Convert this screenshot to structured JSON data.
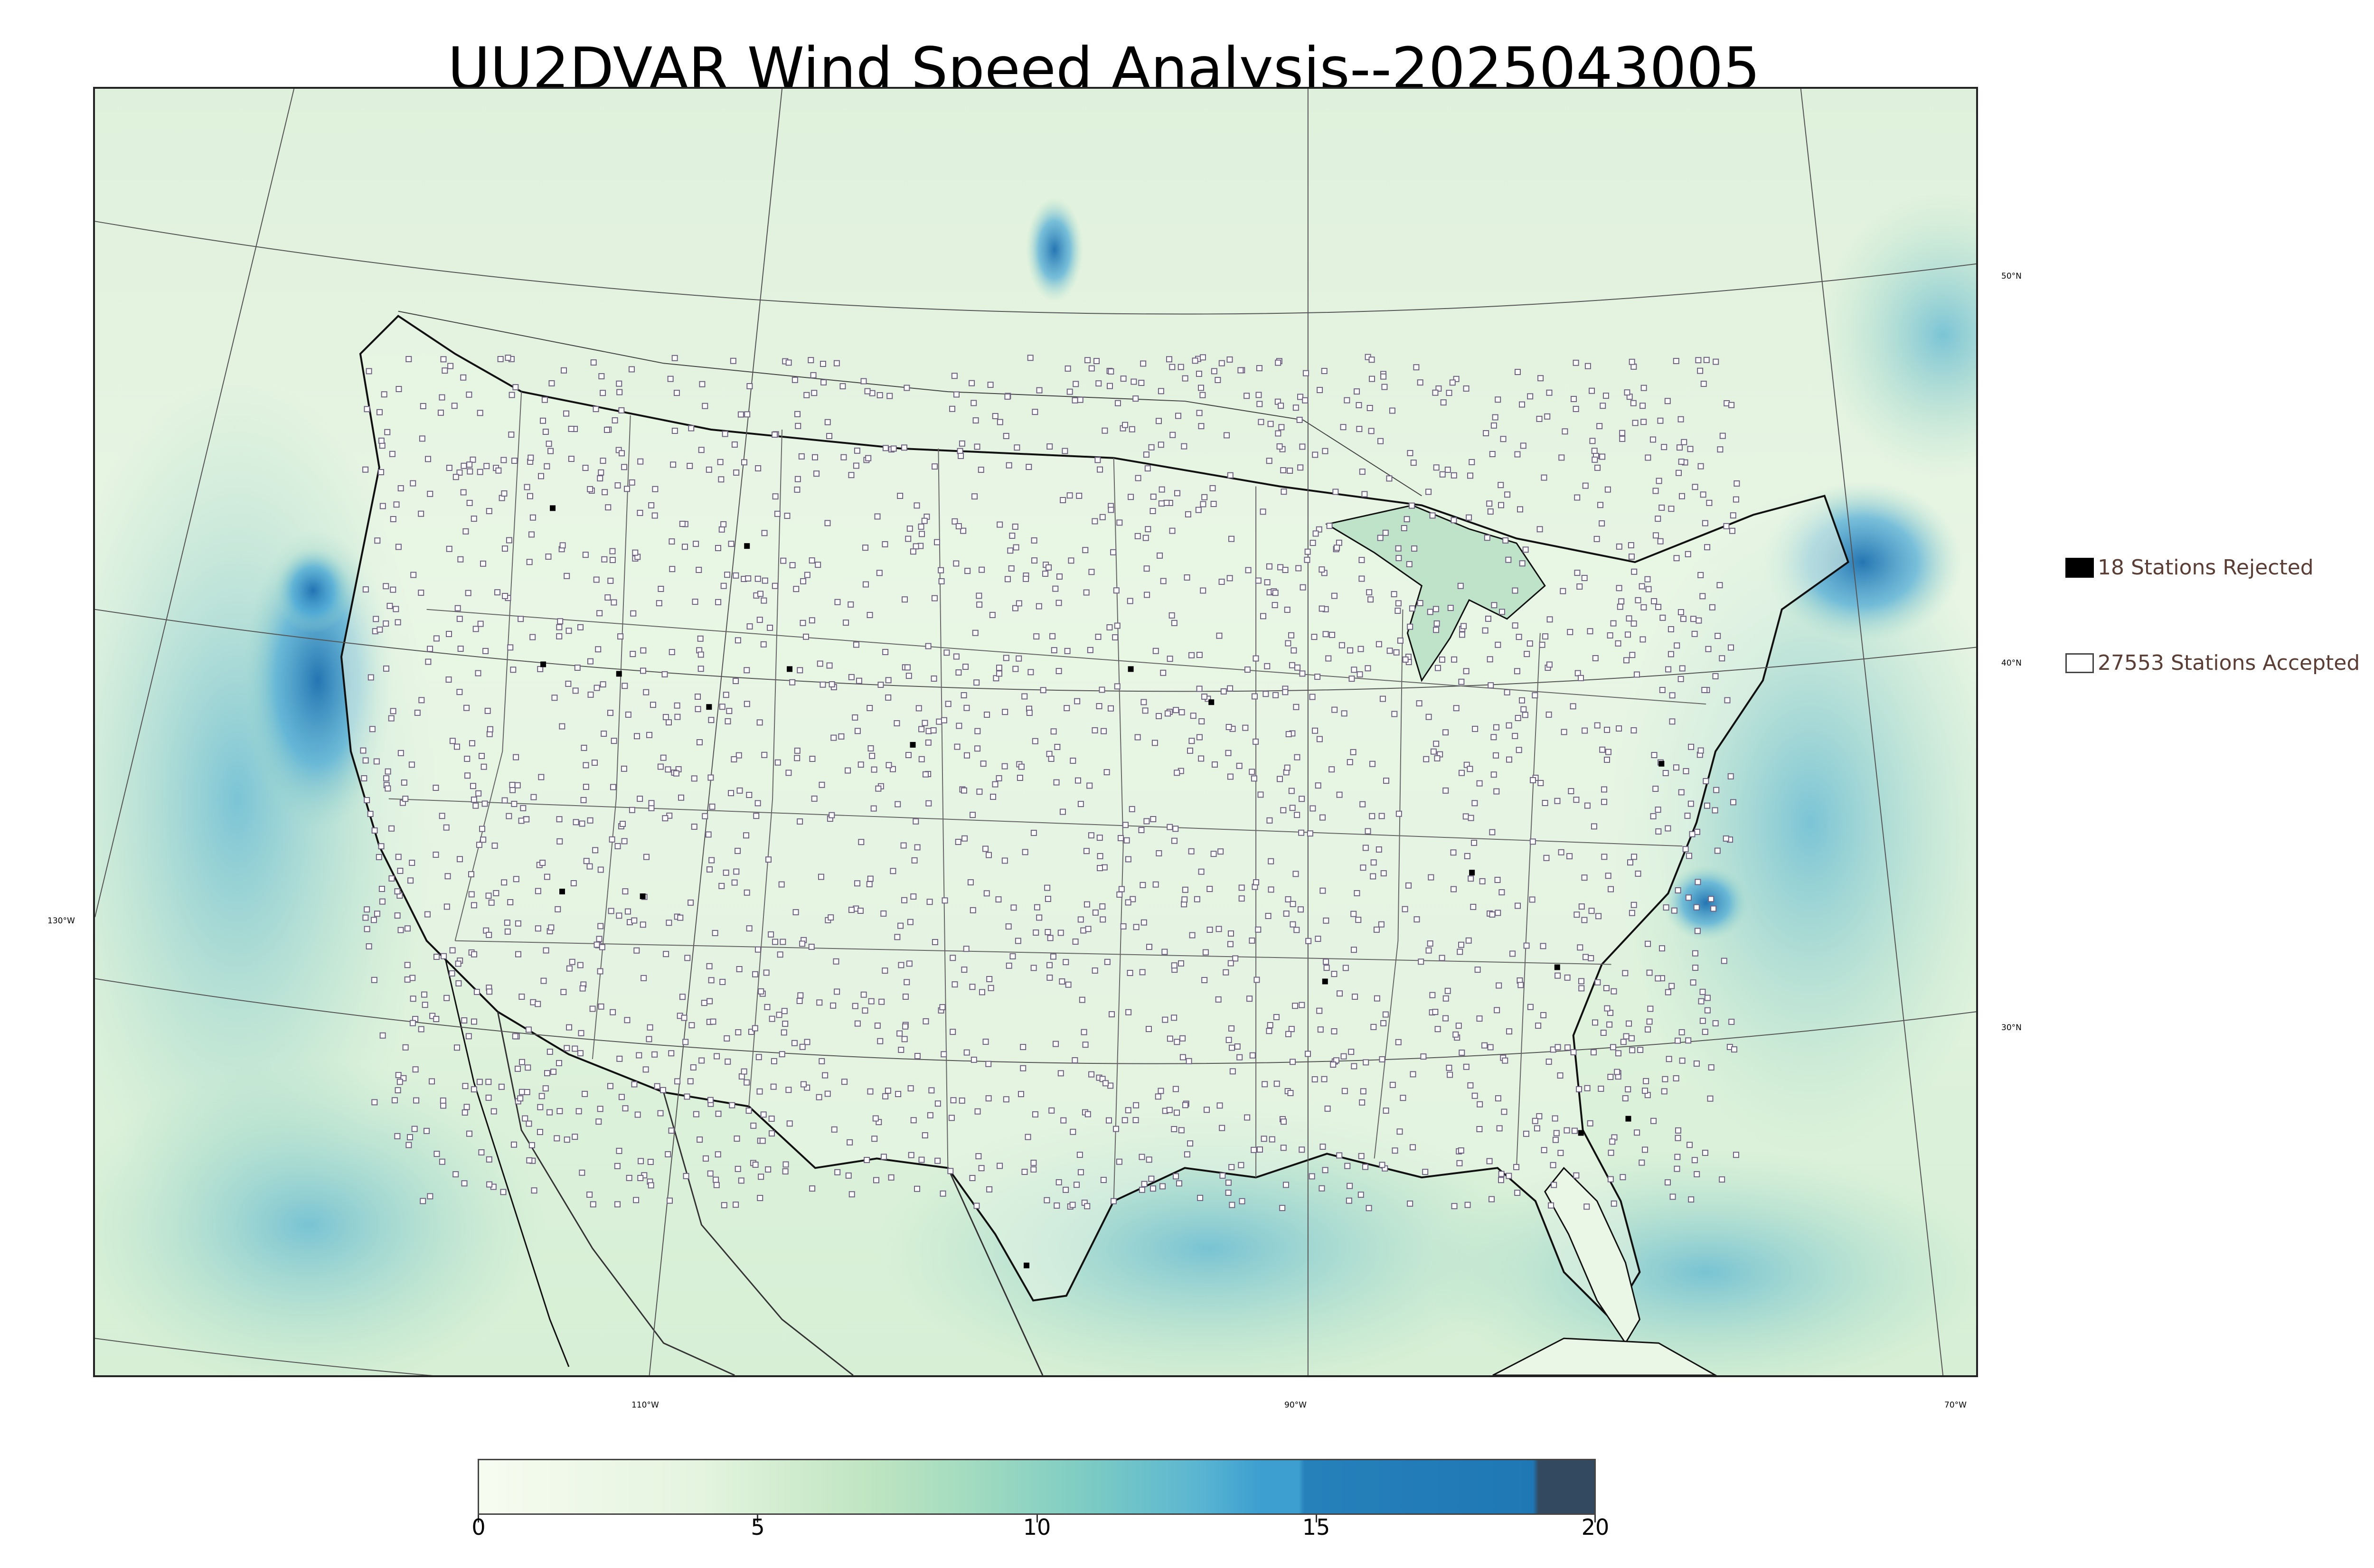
{
  "title": "UU2DVAR Wind Speed Analysis--2025043005",
  "longitude_labels": [
    "110°W",
    "90°W",
    "70°W"
  ],
  "left_label": "130°W",
  "latitude_labels": [
    "50°N",
    "40°N",
    "30°N"
  ],
  "legend": {
    "rejected": {
      "label": "18 Stations Rejected",
      "color": "#000000"
    },
    "accepted": {
      "label": "27553 Stations Accepted",
      "color": "#ffffff"
    }
  },
  "colorbar": {
    "ticks": [
      "0",
      "5",
      "10",
      "15",
      "20"
    ],
    "colors": [
      "#f7fcf0",
      "#e4f4df",
      "#bfe5c1",
      "#7bcbc4",
      "#3d9fd0",
      "#1f78b4",
      "#33495f"
    ]
  },
  "colors": {
    "ocean_high": "#2a7fc0",
    "land": "#e4f3df",
    "station": "#6e6280"
  }
}
